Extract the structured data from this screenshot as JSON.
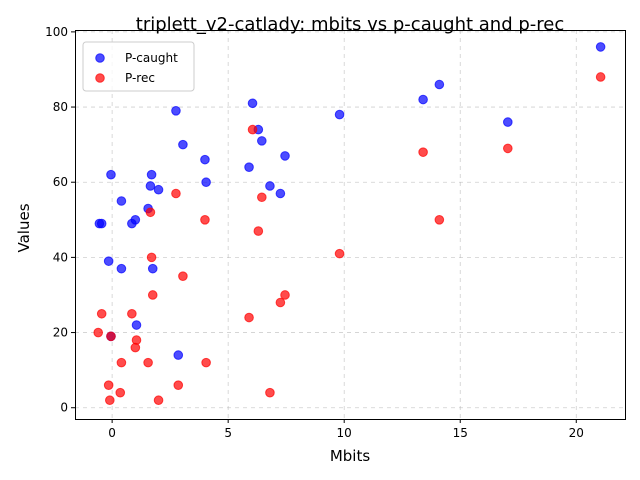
{
  "chart_data": {
    "type": "scatter",
    "title": "triplett_v2-catlady: mbits vs p-caught and p-rec",
    "xlabel": "Mbits",
    "ylabel": "Values",
    "xlim": [
      -1.6,
      22.1
    ],
    "ylim": [
      -3,
      100.5
    ],
    "xticks": [
      0,
      5,
      10,
      15,
      20
    ],
    "yticks": [
      0,
      20,
      40,
      60,
      80,
      100
    ],
    "grid": true,
    "legend_position": "upper-left",
    "series": [
      {
        "name": "P-caught",
        "color": "#0000ff",
        "points": [
          [
            -0.55,
            49
          ],
          [
            -0.45,
            49
          ],
          [
            -0.15,
            39
          ],
          [
            -0.05,
            62
          ],
          [
            -0.05,
            19
          ],
          [
            0.4,
            55
          ],
          [
            0.4,
            37
          ],
          [
            0.85,
            49
          ],
          [
            1.0,
            50
          ],
          [
            1.05,
            22
          ],
          [
            1.55,
            53
          ],
          [
            1.65,
            59
          ],
          [
            1.7,
            62
          ],
          [
            1.75,
            37
          ],
          [
            2.0,
            58
          ],
          [
            2.75,
            79
          ],
          [
            2.85,
            14
          ],
          [
            3.05,
            70
          ],
          [
            4.0,
            66
          ],
          [
            4.05,
            60
          ],
          [
            5.9,
            64
          ],
          [
            6.05,
            81
          ],
          [
            6.3,
            74
          ],
          [
            6.45,
            71
          ],
          [
            6.8,
            59
          ],
          [
            7.25,
            57
          ],
          [
            7.45,
            67
          ],
          [
            9.8,
            78
          ],
          [
            13.4,
            82
          ],
          [
            14.1,
            86
          ],
          [
            17.05,
            76
          ],
          [
            21.05,
            96
          ]
        ]
      },
      {
        "name": "P-rec",
        "color": "#ff0000",
        "points": [
          [
            -0.6,
            20
          ],
          [
            -0.45,
            25
          ],
          [
            -0.15,
            6
          ],
          [
            -0.1,
            2
          ],
          [
            -0.05,
            19
          ],
          [
            0.35,
            4
          ],
          [
            0.4,
            12
          ],
          [
            0.85,
            25
          ],
          [
            1.0,
            16
          ],
          [
            1.05,
            18
          ],
          [
            1.55,
            12
          ],
          [
            1.65,
            52
          ],
          [
            1.7,
            40
          ],
          [
            1.75,
            30
          ],
          [
            2.0,
            2
          ],
          [
            2.75,
            57
          ],
          [
            2.85,
            6
          ],
          [
            3.05,
            35
          ],
          [
            4.0,
            50
          ],
          [
            4.05,
            12
          ],
          [
            5.9,
            24
          ],
          [
            6.05,
            74
          ],
          [
            6.3,
            47
          ],
          [
            6.45,
            56
          ],
          [
            6.8,
            4
          ],
          [
            7.25,
            28
          ],
          [
            7.45,
            30
          ],
          [
            9.8,
            41
          ],
          [
            13.4,
            68
          ],
          [
            14.1,
            50
          ],
          [
            17.05,
            69
          ],
          [
            21.05,
            88
          ]
        ]
      }
    ]
  }
}
